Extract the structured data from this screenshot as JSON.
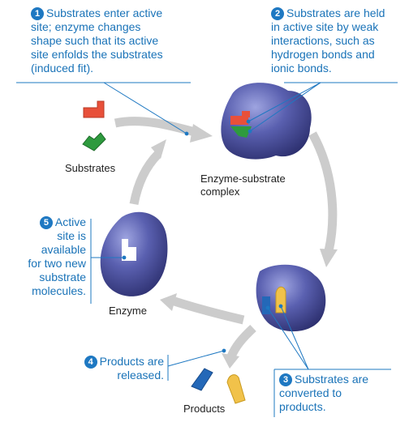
{
  "steps": [
    {
      "number": "1",
      "lines": [
        "Substrates enter active",
        "site; enzyme changes",
        "shape such that its active",
        "site enfolds the  substrates",
        "(induced fit)."
      ]
    },
    {
      "number": "2",
      "lines": [
        "Substrates are held",
        "in active site by weak",
        "interactions, such as",
        "hydrogen bonds and",
        "ionic bonds."
      ]
    },
    {
      "number": "3",
      "lines": [
        "Substrates are",
        "converted to",
        "products."
      ]
    },
    {
      "number": "4",
      "lines": [
        "Products are",
        "released."
      ]
    },
    {
      "number": "5",
      "lines": [
        "Active",
        "site is",
        "available",
        "for two new",
        "substrate",
        "molecules."
      ]
    }
  ],
  "labels": {
    "substrates": "Substrates",
    "complex_line1": "Enzyme-substrate",
    "complex_line2": "complex",
    "enzyme": "Enzyme",
    "products": "Products"
  },
  "colors": {
    "callout": "#1a73b8",
    "enzyme": "#4a4f9a",
    "substrate_red": "#e8503a",
    "substrate_green": "#2e9a3e",
    "product_blue": "#2468b8",
    "product_yellow": "#f1c24a",
    "cycle_arrow": "#cccccc"
  }
}
